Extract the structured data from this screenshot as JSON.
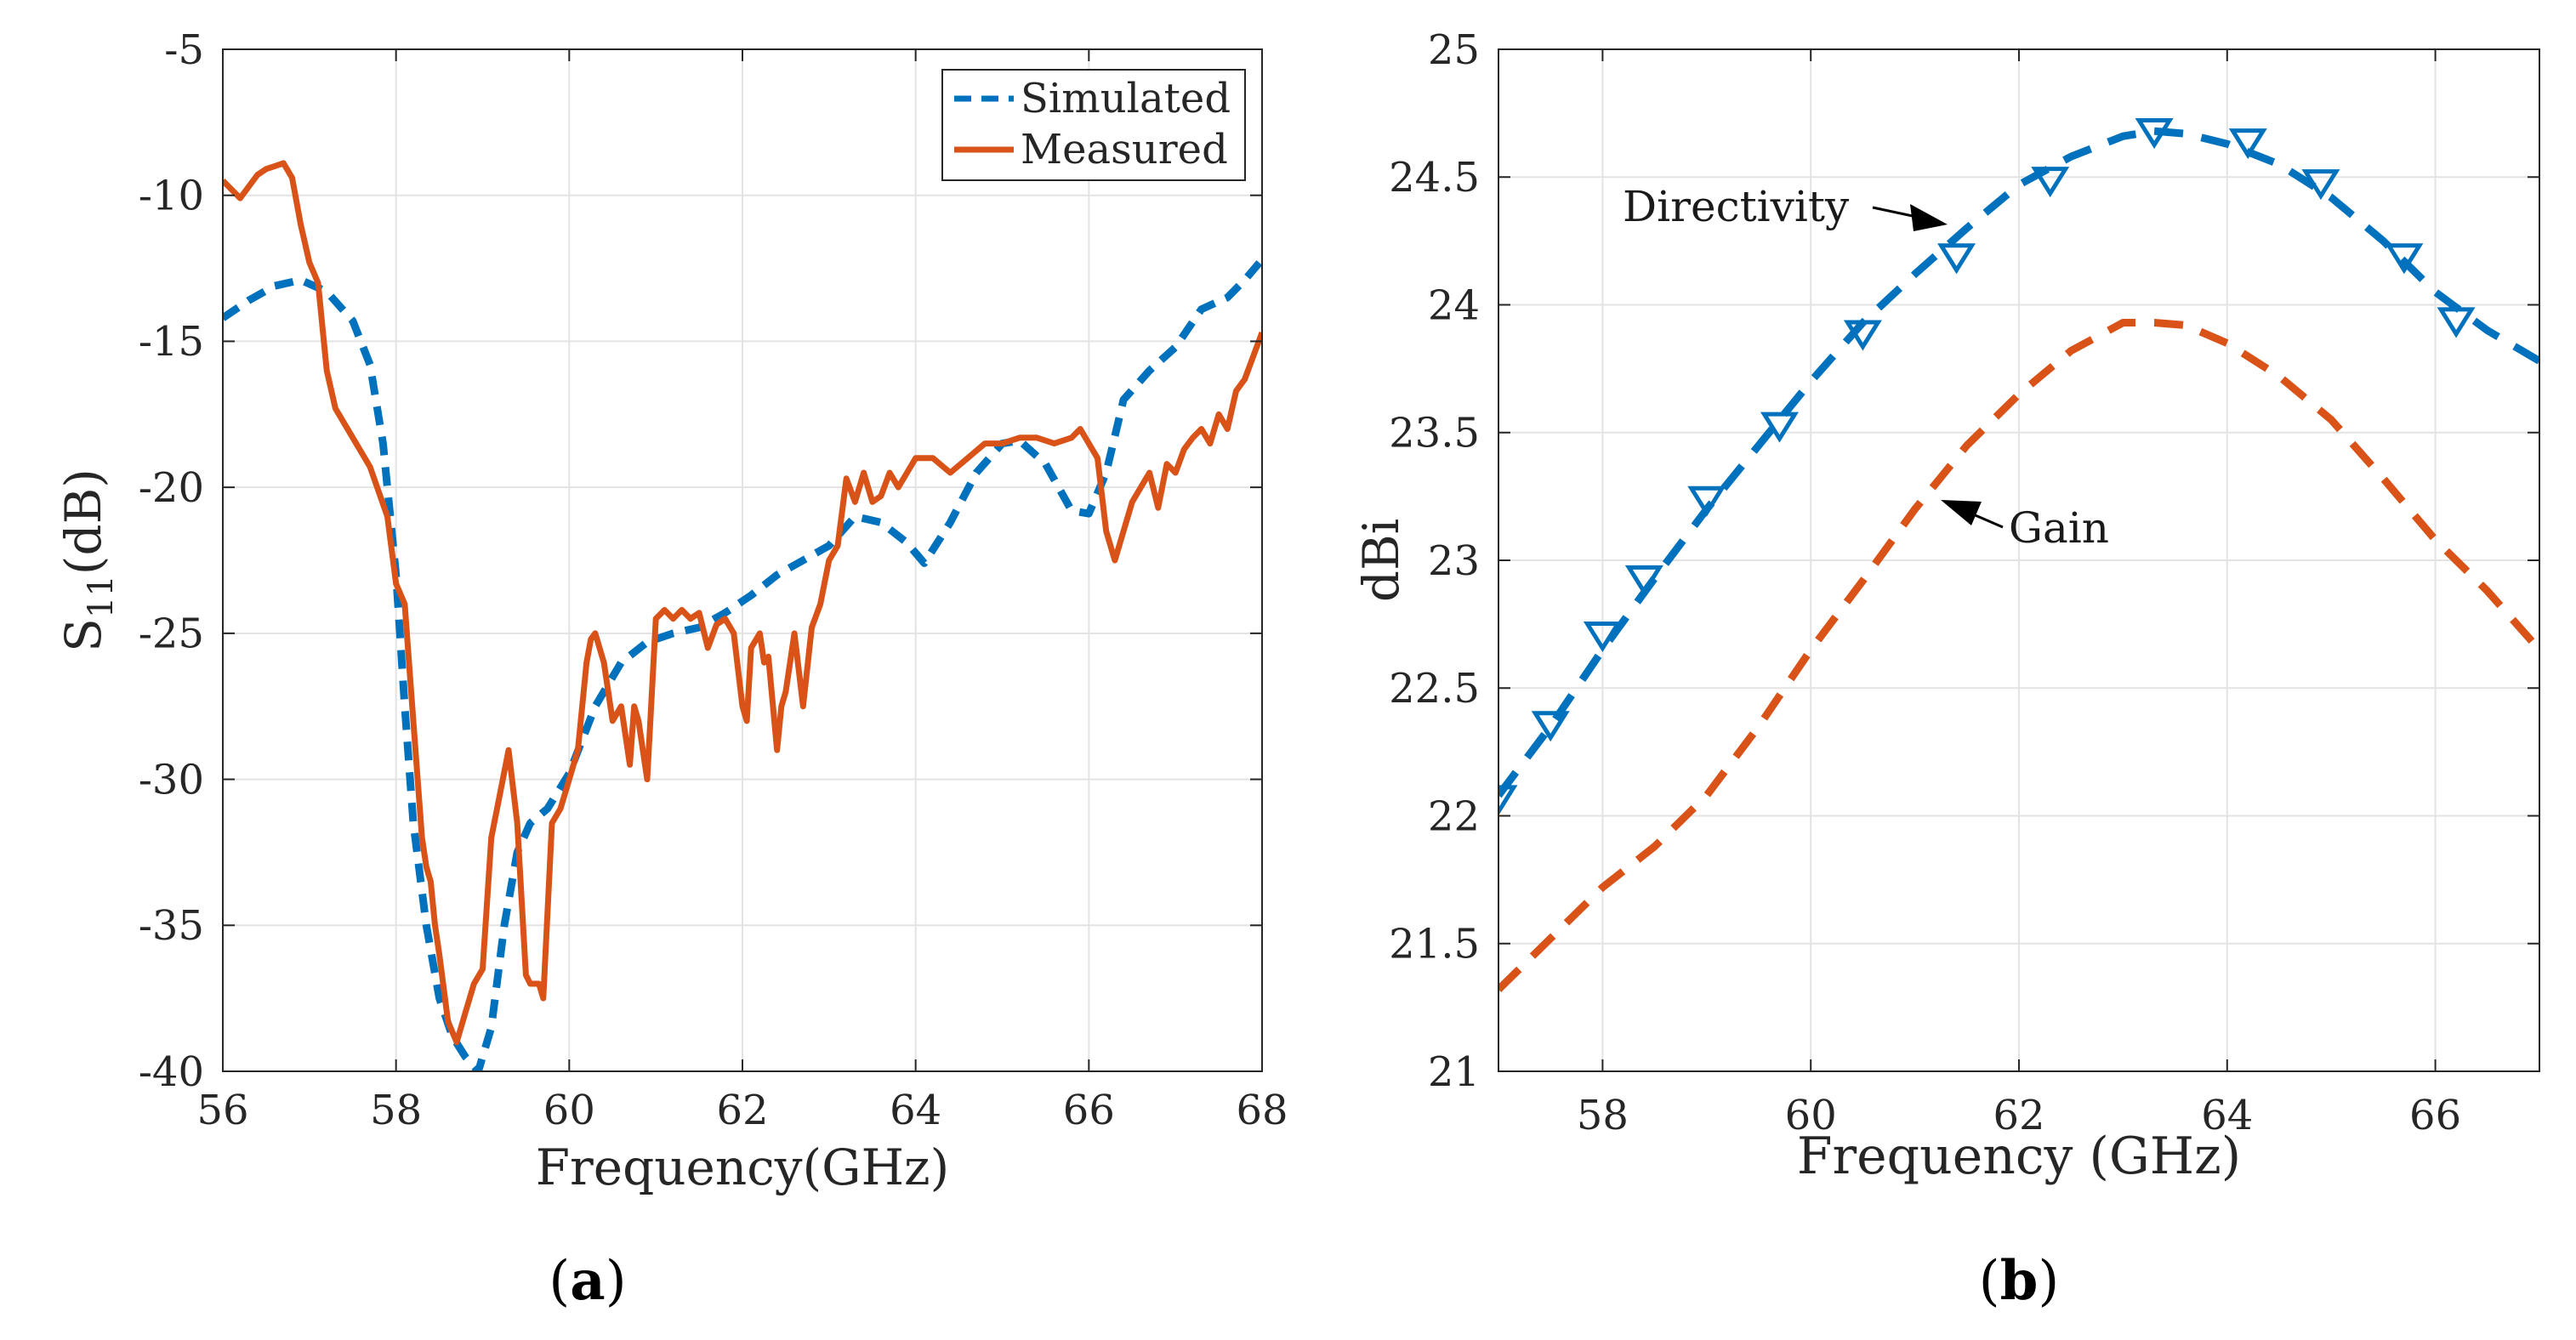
{
  "chart_data": [
    {
      "panel": "a",
      "panel_label": "a",
      "type": "line",
      "xlabel": "Frequency(GHz)",
      "ylabel": "S",
      "ylabel_subscript": "11",
      "ylabel_suffix": "(dB)",
      "xlim": [
        56,
        68
      ],
      "ylim": [
        -40,
        -5
      ],
      "xticks": [
        56,
        58,
        60,
        62,
        64,
        66,
        68
      ],
      "yticks": [
        -5,
        -10,
        -15,
        -20,
        -25,
        -30,
        -35,
        -40
      ],
      "grid": true,
      "legend_position": "top-right",
      "series": [
        {
          "name": "Simulated",
          "style": "dashed",
          "color": "#0072BD",
          "x": [
            56,
            56.3,
            56.6,
            56.9,
            57.2,
            57.5,
            57.7,
            57.85,
            58.0,
            58.1,
            58.2,
            58.35,
            58.5,
            58.65,
            58.8,
            58.95,
            59.1,
            59.25,
            59.4,
            59.55,
            59.75,
            60.0,
            60.3,
            60.6,
            60.9,
            61.2,
            61.5,
            61.8,
            62.1,
            62.4,
            62.7,
            63.0,
            63.3,
            63.6,
            63.9,
            64.1,
            64.4,
            64.7,
            65.0,
            65.2,
            65.5,
            65.8,
            66.0,
            66.2,
            66.4,
            66.7,
            67.0,
            67.3,
            67.6,
            67.8,
            68.0
          ],
          "values": [
            -14.2,
            -13.6,
            -13.1,
            -12.9,
            -13.3,
            -14.3,
            -15.8,
            -18.5,
            -23.0,
            -27.5,
            -31.5,
            -35.0,
            -37.5,
            -38.8,
            -39.5,
            -40.0,
            -38.5,
            -35.0,
            -32.5,
            -31.5,
            -31.0,
            -29.8,
            -27.5,
            -26.0,
            -25.3,
            -25.0,
            -24.8,
            -24.3,
            -23.7,
            -23.0,
            -22.5,
            -22.0,
            -21.0,
            -21.2,
            -21.9,
            -22.6,
            -21.2,
            -19.5,
            -18.5,
            -18.4,
            -19.2,
            -20.8,
            -20.9,
            -19.5,
            -17.0,
            -16.0,
            -15.2,
            -13.9,
            -13.5,
            -12.9,
            -12.2
          ]
        },
        {
          "name": "Measured",
          "style": "solid",
          "color": "#D95319",
          "x": [
            56,
            56.1,
            56.2,
            56.3,
            56.4,
            56.5,
            56.6,
            56.7,
            56.8,
            56.9,
            57.0,
            57.1,
            57.2,
            57.3,
            57.5,
            57.7,
            57.9,
            58.0,
            58.1,
            58.2,
            58.25,
            58.3,
            58.35,
            58.4,
            58.45,
            58.5,
            58.6,
            58.7,
            58.8,
            58.9,
            59.0,
            59.1,
            59.2,
            59.3,
            59.4,
            59.5,
            59.55,
            59.65,
            59.7,
            59.8,
            59.9,
            60.0,
            60.1,
            60.2,
            60.25,
            60.3,
            60.4,
            60.5,
            60.6,
            60.7,
            60.75,
            60.8,
            60.9,
            61.0,
            61.1,
            61.2,
            61.3,
            61.4,
            61.5,
            61.6,
            61.7,
            61.8,
            61.9,
            62.0,
            62.05,
            62.1,
            62.2,
            62.25,
            62.3,
            62.4,
            62.45,
            62.5,
            62.6,
            62.7,
            62.8,
            62.9,
            63.0,
            63.1,
            63.2,
            63.3,
            63.4,
            63.5,
            63.6,
            63.7,
            63.8,
            63.9,
            64.0,
            64.2,
            64.4,
            64.6,
            64.8,
            65.0,
            65.2,
            65.4,
            65.6,
            65.8,
            65.9,
            66.0,
            66.1,
            66.2,
            66.3,
            66.5,
            66.7,
            66.8,
            66.9,
            67.0,
            67.1,
            67.2,
            67.3,
            67.4,
            67.5,
            67.6,
            67.7,
            67.8,
            67.9,
            68.0
          ],
          "values": [
            -9.5,
            -9.8,
            -10.1,
            -9.7,
            -9.3,
            -9.1,
            -9.0,
            -8.9,
            -9.4,
            -11.0,
            -12.3,
            -13.0,
            -16.0,
            -17.3,
            -18.3,
            -19.3,
            -21.0,
            -23.3,
            -24.0,
            -28.0,
            -30.0,
            -32.0,
            -33.0,
            -33.5,
            -35.0,
            -36.0,
            -38.3,
            -39.0,
            -38.0,
            -37.0,
            -36.5,
            -32.0,
            -30.5,
            -29.0,
            -31.5,
            -36.7,
            -37.0,
            -37.0,
            -37.5,
            -31.5,
            -31.0,
            -30.0,
            -29.0,
            -26.0,
            -25.2,
            -25.0,
            -26.0,
            -28.0,
            -27.5,
            -29.5,
            -27.5,
            -28.0,
            -30.0,
            -24.5,
            -24.2,
            -24.5,
            -24.2,
            -24.5,
            -24.3,
            -25.5,
            -24.7,
            -24.5,
            -25.0,
            -27.5,
            -28.0,
            -25.5,
            -25.0,
            -26.0,
            -25.8,
            -29.0,
            -27.5,
            -27.0,
            -25.0,
            -27.5,
            -24.8,
            -24.0,
            -22.5,
            -22.0,
            -19.7,
            -20.5,
            -19.5,
            -20.5,
            -20.3,
            -19.5,
            -20.0,
            -19.5,
            -19.0,
            -19.0,
            -19.5,
            -19.0,
            -18.5,
            -18.5,
            -18.3,
            -18.3,
            -18.5,
            -18.3,
            -18.0,
            -18.5,
            -19.0,
            -21.5,
            -22.5,
            -20.5,
            -19.5,
            -20.7,
            -19.2,
            -19.5,
            -18.7,
            -18.3,
            -18.0,
            -18.5,
            -17.5,
            -18.0,
            -16.7,
            -16.3,
            -15.5,
            -14.7
          ]
        }
      ]
    },
    {
      "panel": "b",
      "panel_label": "b",
      "type": "line",
      "xlabel": "Frequency (GHz)",
      "ylabel": "dBi",
      "xlim": [
        57,
        67
      ],
      "ylim": [
        21,
        25
      ],
      "xticks": [
        58,
        60,
        62,
        64,
        66
      ],
      "yticks": [
        25,
        24.5,
        24,
        23.5,
        23,
        22.5,
        22,
        21.5,
        21
      ],
      "ytick_labels": [
        "25",
        "24.5",
        "24",
        "23.5",
        "23",
        "22.5",
        "22",
        "21.5",
        "21"
      ],
      "grid": true,
      "annotations": [
        {
          "text": "Directivity",
          "target_series": "Directivity"
        },
        {
          "text": "Gain",
          "target_series": "Gain"
        }
      ],
      "series": [
        {
          "name": "Directivity",
          "style": "dashed",
          "marker": "triangle-down",
          "color": "#0072BD",
          "x": [
            57.0,
            57.5,
            58.0,
            58.5,
            59.0,
            59.5,
            60.0,
            60.5,
            61.0,
            61.5,
            62.0,
            62.5,
            63.0,
            63.3,
            63.6,
            64.0,
            64.5,
            65.0,
            65.5,
            66.0,
            66.5,
            67.0
          ],
          "values": [
            22.08,
            22.35,
            22.65,
            22.93,
            23.2,
            23.45,
            23.7,
            23.93,
            24.12,
            24.3,
            24.47,
            24.58,
            24.66,
            24.68,
            24.67,
            24.63,
            24.55,
            24.42,
            24.25,
            24.05,
            23.9,
            23.78
          ]
        },
        {
          "name": "Directivity markers",
          "style": "markers",
          "marker": "triangle-down",
          "color": "#0072BD",
          "x": [
            57.0,
            57.5,
            58.0,
            58.4,
            59.0,
            59.7,
            60.5,
            61.4,
            62.3,
            63.3,
            64.2,
            64.9,
            65.7,
            66.2
          ],
          "values": [
            22.07,
            22.36,
            22.71,
            22.93,
            23.24,
            23.53,
            23.89,
            24.19,
            24.49,
            24.68,
            24.64,
            24.48,
            24.19,
            23.94
          ]
        },
        {
          "name": "Gain",
          "style": "dashed",
          "color": "#D95319",
          "x": [
            57.0,
            57.5,
            58.0,
            58.5,
            59.0,
            59.5,
            60.0,
            60.5,
            61.0,
            61.5,
            62.0,
            62.5,
            63.0,
            63.3,
            63.6,
            64.0,
            64.5,
            65.0,
            65.5,
            66.0,
            66.5,
            67.0
          ],
          "values": [
            21.32,
            21.52,
            21.72,
            21.88,
            22.08,
            22.35,
            22.65,
            22.92,
            23.2,
            23.45,
            23.65,
            23.82,
            23.93,
            23.93,
            23.92,
            23.85,
            23.72,
            23.55,
            23.32,
            23.08,
            22.88,
            22.65
          ]
        }
      ]
    }
  ],
  "colors": {
    "simulated": "#0072BD",
    "measured": "#D95319",
    "grid": "#e3e3e3",
    "axis": "#262626"
  }
}
